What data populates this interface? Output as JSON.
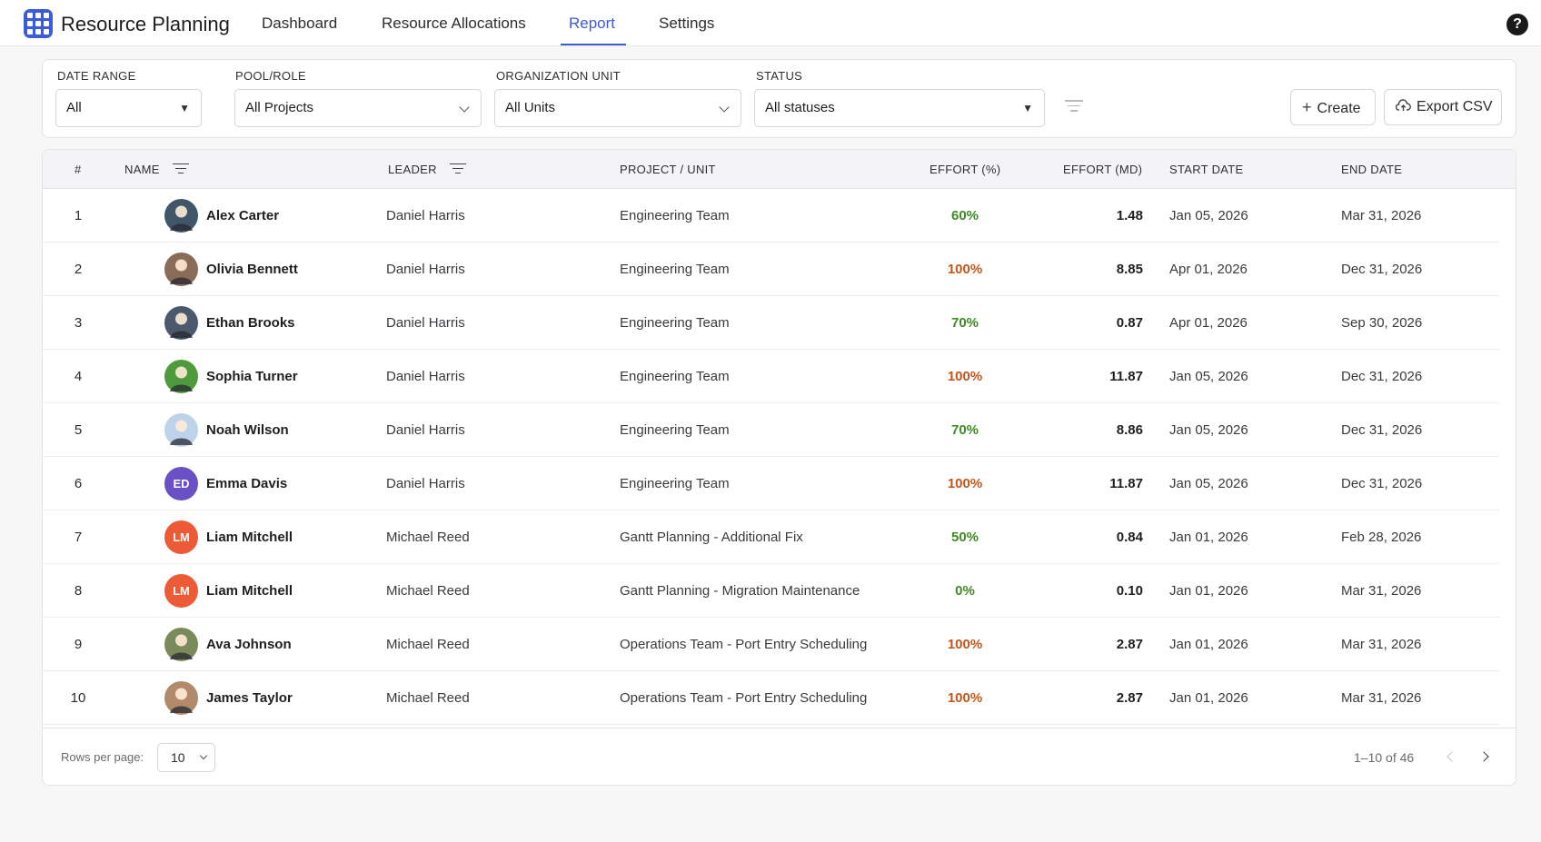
{
  "app": {
    "title": "Resource Planning",
    "brand_color": "#3b5bd9"
  },
  "nav": {
    "tabs": [
      {
        "label": "Dashboard",
        "active": false
      },
      {
        "label": "Resource Allocations",
        "active": false
      },
      {
        "label": "Report",
        "active": true
      },
      {
        "label": "Settings",
        "active": false
      }
    ],
    "help_icon": "help-circle-icon"
  },
  "filters": {
    "date_range": {
      "label": "DATE RANGE",
      "value": "All"
    },
    "pool_role": {
      "label": "POOL/ROLE",
      "value": "All Projects"
    },
    "org_unit": {
      "label": "ORGANIZATION UNIT",
      "value": "All Units"
    },
    "status": {
      "label": "STATUS",
      "value": "All statuses"
    },
    "filter_icon": "filter-lines-icon",
    "create_label": "Create",
    "export_label": "Export CSV"
  },
  "table": {
    "headers": {
      "index": "#",
      "name": "NAME",
      "leader": "LEADER",
      "project": "PROJECT / UNIT",
      "effort_pct": "EFFORT (%)",
      "effort_md": "EFFORT (MD)",
      "start": "START DATE",
      "end": "END DATE"
    },
    "rows": [
      {
        "idx": "1",
        "name": "Alex Carter",
        "initials": "",
        "avatar_color": "#3f5568",
        "leader": "Daniel Harris",
        "project": "Engineering Team",
        "pct": "60%",
        "pct_color": "green",
        "md": "1.48",
        "start": "Jan 05, 2026",
        "end": "Mar 31, 2026"
      },
      {
        "idx": "2",
        "name": "Olivia Bennett",
        "initials": "",
        "avatar_color": "#8a6a58",
        "leader": "Daniel Harris",
        "project": "Engineering Team",
        "pct": "100%",
        "pct_color": "orange",
        "md": "8.85",
        "start": "Apr 01, 2026",
        "end": "Dec 31, 2026"
      },
      {
        "idx": "3",
        "name": "Ethan Brooks",
        "initials": "",
        "avatar_color": "#4a5a6c",
        "leader": "Daniel Harris",
        "project": "Engineering Team",
        "pct": "70%",
        "pct_color": "green",
        "md": "0.87",
        "start": "Apr 01, 2026",
        "end": "Sep 30, 2026"
      },
      {
        "idx": "4",
        "name": "Sophia Turner",
        "initials": "",
        "avatar_color": "#4e9a3c",
        "leader": "Daniel Harris",
        "project": "Engineering Team",
        "pct": "100%",
        "pct_color": "orange",
        "md": "11.87",
        "start": "Jan 05, 2026",
        "end": "Dec 31, 2026"
      },
      {
        "idx": "5",
        "name": "Noah Wilson",
        "initials": "",
        "avatar_color": "#bcd3ea",
        "leader": "Daniel Harris",
        "project": "Engineering Team",
        "pct": "70%",
        "pct_color": "green",
        "md": "8.86",
        "start": "Jan 05, 2026",
        "end": "Dec 31, 2026"
      },
      {
        "idx": "6",
        "name": "Emma Davis",
        "initials": "ED",
        "avatar_color": "#6b4fc4",
        "leader": "Daniel Harris",
        "project": "Engineering Team",
        "pct": "100%",
        "pct_color": "orange",
        "md": "11.87",
        "start": "Jan 05, 2026",
        "end": "Dec 31, 2026"
      },
      {
        "idx": "7",
        "name": "Liam Mitchell",
        "initials": "LM",
        "avatar_color": "#ec5a36",
        "leader": "Michael Reed",
        "project": "Gantt Planning - Additional Fix",
        "pct": "50%",
        "pct_color": "green",
        "md": "0.84",
        "start": "Jan 01, 2026",
        "end": "Feb 28, 2026"
      },
      {
        "idx": "8",
        "name": "Liam Mitchell",
        "initials": "LM",
        "avatar_color": "#ec5a36",
        "leader": "Michael Reed",
        "project": "Gantt Planning - Migration Maintenance",
        "pct": "0%",
        "pct_color": "green",
        "md": "0.10",
        "start": "Jan 01, 2026",
        "end": "Mar 31, 2026"
      },
      {
        "idx": "9",
        "name": "Ava Johnson",
        "initials": "",
        "avatar_color": "#7a8a5a",
        "leader": "Michael Reed",
        "project": "Operations Team - Port Entry Scheduling",
        "pct": "100%",
        "pct_color": "orange",
        "md": "2.87",
        "start": "Jan 01, 2026",
        "end": "Mar 31, 2026"
      },
      {
        "idx": "10",
        "name": "James Taylor",
        "initials": "",
        "avatar_color": "#b08a6a",
        "leader": "Michael Reed",
        "project": "Operations Team - Port Entry Scheduling",
        "pct": "100%",
        "pct_color": "orange",
        "md": "2.87",
        "start": "Jan 01, 2026",
        "end": "Mar 31, 2026"
      }
    ]
  },
  "pagination": {
    "rows_per_page_label": "Rows per page:",
    "rows_per_page": "10",
    "range": "1–10 of 46"
  },
  "colors": {
    "pct_green": "#3f8b25",
    "pct_orange": "#c2561a"
  }
}
